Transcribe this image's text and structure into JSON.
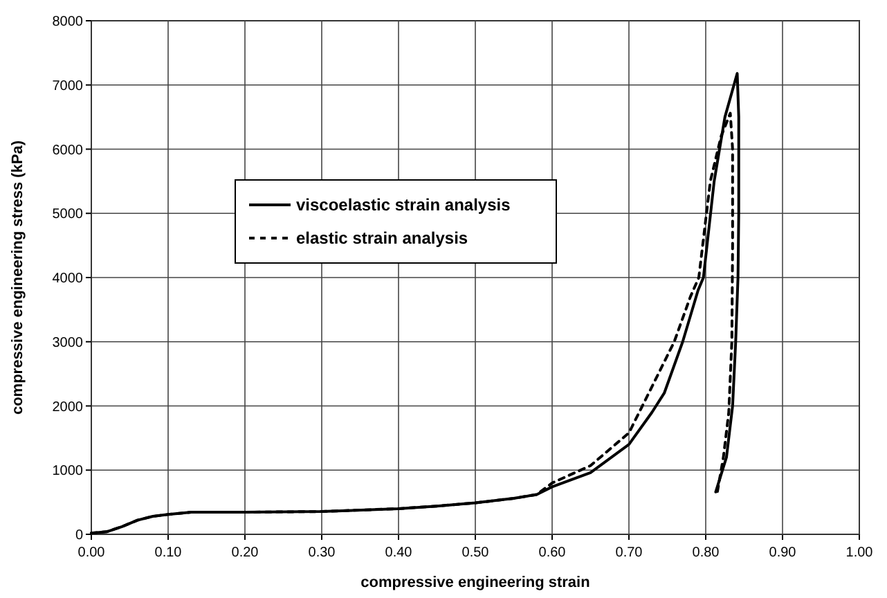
{
  "chart_data": {
    "type": "line",
    "xlabel": "compressive engineering strain",
    "ylabel": "compressive engineering stress (kPa)",
    "xlim": [
      0,
      1
    ],
    "xticks": [
      {
        "value": 0,
        "label": "0.00"
      },
      {
        "value": 0.1,
        "label": "0.10"
      },
      {
        "value": 0.2,
        "label": "0.20"
      },
      {
        "value": 0.3,
        "label": "0.30"
      },
      {
        "value": 0.4,
        "label": "0.40"
      },
      {
        "value": 0.5,
        "label": "0.50"
      },
      {
        "value": 0.6,
        "label": "0.60"
      },
      {
        "value": 0.7,
        "label": "0.70"
      },
      {
        "value": 0.8,
        "label": "0.80"
      },
      {
        "value": 0.9,
        "label": "0.90"
      },
      {
        "value": 1,
        "label": "1.00"
      }
    ],
    "ylim": [
      0,
      8000
    ],
    "yticks": [
      0,
      1000,
      2000,
      3000,
      4000,
      5000,
      6000,
      7000,
      8000
    ],
    "grid": true,
    "legend": "top left",
    "marker": "none",
    "series": [
      {
        "name": "viscoelastic strain analysis",
        "color": "#000000",
        "line_style": "solid",
        "x": [
          0,
          0.02,
          0.04,
          0.06,
          0.08,
          0.1,
          0.13,
          0.2,
          0.3,
          0.4,
          0.45,
          0.5,
          0.55,
          0.58,
          0.6,
          0.65,
          0.7,
          0.73,
          0.746,
          0.77,
          0.79,
          0.797,
          0.811,
          0.825,
          0.841,
          0.843,
          0.843,
          0.842,
          0.839,
          0.835,
          0.827,
          0.813
        ],
        "values": [
          20,
          40,
          120,
          220,
          280,
          310,
          345,
          345,
          355,
          400,
          440,
          490,
          560,
          620,
          740,
          960,
          1400,
          1900,
          2200,
          3000,
          3800,
          4000,
          5500,
          6500,
          7180,
          6500,
          5000,
          4000,
          3000,
          2000,
          1200,
          660
        ]
      },
      {
        "name": "elastic strain analysis",
        "color": "#000000",
        "line_style": "dashed",
        "x": [
          0,
          0.02,
          0.04,
          0.06,
          0.08,
          0.1,
          0.13,
          0.2,
          0.3,
          0.4,
          0.45,
          0.5,
          0.55,
          0.58,
          0.6,
          0.65,
          0.7,
          0.73,
          0.759,
          0.78,
          0.791,
          0.806,
          0.82,
          0.832,
          0.835,
          0.835,
          0.834,
          0.83,
          0.823,
          0.815
        ],
        "values": [
          20,
          40,
          120,
          220,
          280,
          310,
          345,
          345,
          355,
          400,
          440,
          490,
          560,
          620,
          800,
          1070,
          1580,
          2300,
          3000,
          3700,
          4000,
          5500,
          6200,
          6560,
          6000,
          4500,
          3000,
          1900,
          1200,
          650
        ]
      }
    ]
  }
}
